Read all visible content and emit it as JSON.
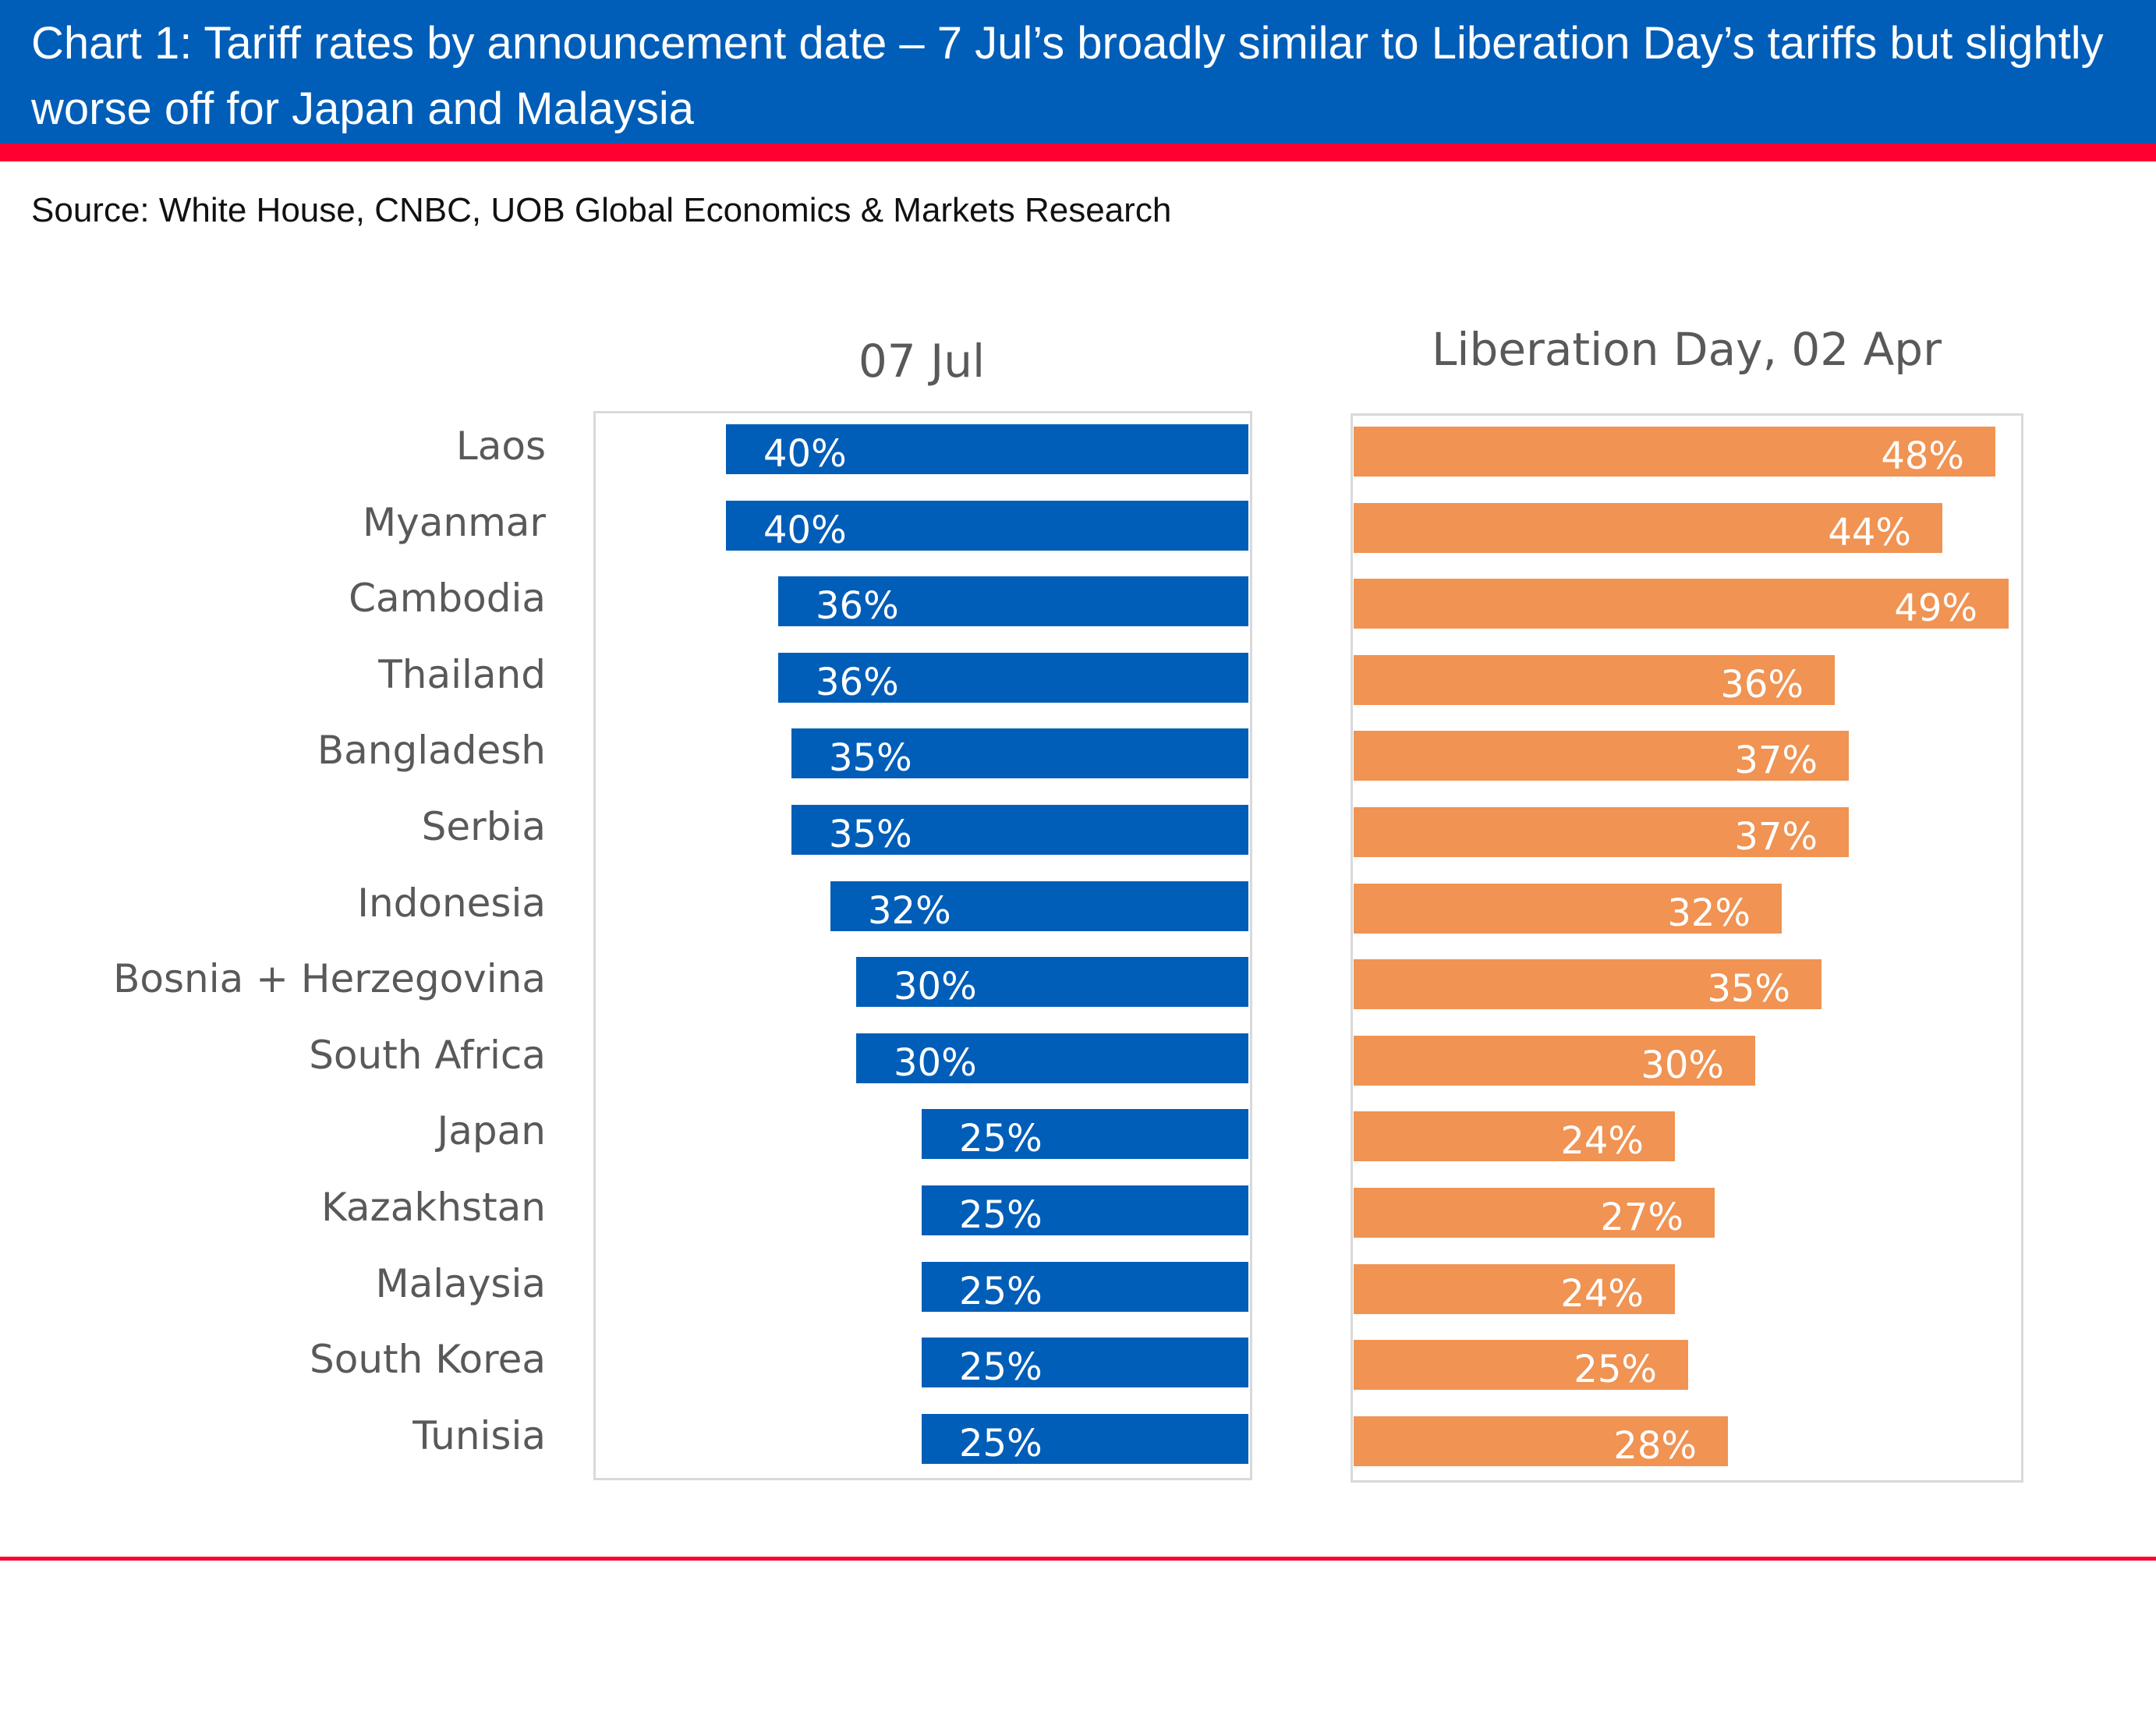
{
  "header": {
    "title": "Chart 1: Tariff rates by announcement date – 7 Jul’s broadly similar to Liberation Day’s tariffs but slightly worse off for Japan and Malaysia",
    "source": "Source: White House, CNBC, UOB Global Economics & Markets Research"
  },
  "colors": {
    "header_bg": "#005EB8",
    "accent_red": "#FF0030",
    "series_07jul": "#005EB8",
    "series_liberation": "#F09353"
  },
  "chart_data": {
    "type": "bar",
    "orientation": "horizontal",
    "layout": "two-panel",
    "categories": [
      "Laos",
      "Myanmar",
      "Cambodia",
      "Thailand",
      "Bangladesh",
      "Serbia",
      "Indonesia",
      "Bosnia + Herzegovina",
      "South Africa",
      "Japan",
      "Kazakhstan",
      "Malaysia",
      "South Korea",
      "Tunisia"
    ],
    "series": [
      {
        "name": "07 Jul",
        "direction": "right-to-left",
        "values": [
          40,
          40,
          36,
          36,
          35,
          35,
          32,
          30,
          30,
          25,
          25,
          25,
          25,
          25
        ],
        "labels": [
          "40%",
          "40%",
          "36%",
          "36%",
          "35%",
          "35%",
          "32%",
          "30%",
          "30%",
          "25%",
          "25%",
          "25%",
          "25%",
          "25%"
        ]
      },
      {
        "name": "Liberation Day, 02 Apr",
        "direction": "left-to-right",
        "values": [
          48,
          44,
          49,
          36,
          37,
          37,
          32,
          35,
          30,
          24,
          27,
          24,
          25,
          28
        ],
        "labels": [
          "48%",
          "44%",
          "49%",
          "36%",
          "37%",
          "37%",
          "32%",
          "35%",
          "30%",
          "24%",
          "27%",
          "24%",
          "25%",
          "28%"
        ]
      }
    ],
    "unit": "%",
    "grid": false,
    "legend": "none"
  }
}
